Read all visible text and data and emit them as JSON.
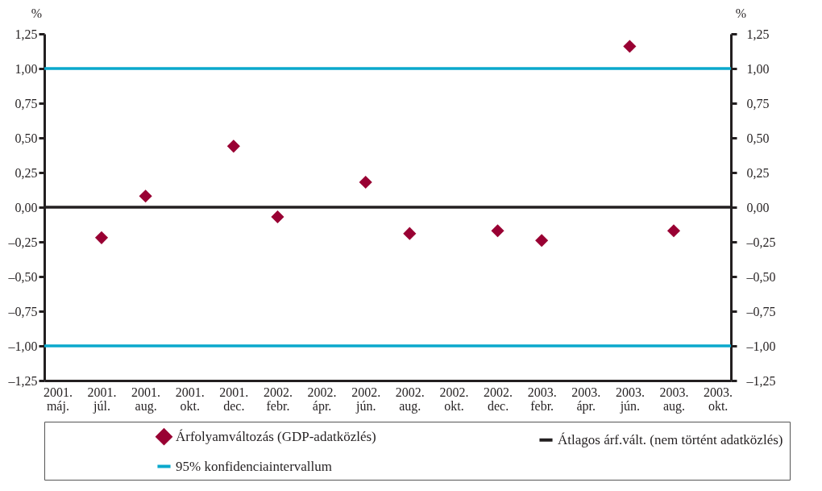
{
  "chart_data": {
    "type": "scatter",
    "ylabel": "%",
    "y2label": "%",
    "categories": [
      "2001. máj.",
      "2001. júl.",
      "2001. aug.",
      "2001. okt.",
      "2001. dec.",
      "2002. febr.",
      "2002. ápr.",
      "2002. jún.",
      "2002. aug.",
      "2002. okt.",
      "2002. dec.",
      "2003. febr.",
      "2003. ápr.",
      "2003. jún.",
      "2003. aug.",
      "2003. okt."
    ],
    "ylim": [
      -1.25,
      1.25
    ],
    "yticks": [
      {
        "value": -1.25,
        "label": "–1,25"
      },
      {
        "value": -1,
        "label": "–1,00"
      },
      {
        "value": -0.75,
        "label": "–0,75"
      },
      {
        "value": -0.5,
        "label": "–0,50"
      },
      {
        "value": -0.25,
        "label": "–0,25"
      },
      {
        "value": 0,
        "label": "0,00"
      },
      {
        "value": 0.25,
        "label": "0,25"
      },
      {
        "value": 0.5,
        "label": "0,50"
      },
      {
        "value": 0.75,
        "label": "0,75"
      },
      {
        "value": 1,
        "label": "1,00"
      },
      {
        "value": 1.25,
        "label": "1,25"
      }
    ],
    "y2lim": [
      -1.25,
      1.25
    ],
    "y2ticks": [
      {
        "value": -1.25,
        "label": "–1,25"
      },
      {
        "value": -1,
        "label": "–1,00"
      },
      {
        "value": -0.75,
        "label": "–0,75"
      },
      {
        "value": -0.5,
        "label": "–0,50"
      },
      {
        "value": -0.25,
        "label": "–0,25"
      },
      {
        "value": 0,
        "label": "0,00"
      },
      {
        "value": 0.25,
        "label": "0,25"
      },
      {
        "value": 0.5,
        "label": "0,50"
      },
      {
        "value": 0.75,
        "label": "0,75"
      },
      {
        "value": 1,
        "label": "1,00"
      },
      {
        "value": 1.25,
        "label": "1,25"
      }
    ],
    "series": [
      {
        "name": "Árfolyamváltozás (GDP-adatközlés)",
        "color": "#990033",
        "values": [
          null,
          -0.22,
          0.08,
          null,
          0.44,
          -0.07,
          null,
          0.18,
          -0.19,
          null,
          -0.17,
          -0.24,
          null,
          1.16,
          -0.17,
          null
        ]
      }
    ],
    "ref_lines": [
      {
        "axis": "y",
        "value": 0,
        "label": "Átlagos árf.vált. (nem történt adatközlés)",
        "color": "#231f20"
      },
      {
        "axis": "y",
        "value": 1,
        "label": "95% konfidenciaintervallum",
        "color": "#0aa8cc"
      },
      {
        "axis": "y",
        "value": -1,
        "color": "#0aa8cc"
      }
    ],
    "marker": "diamond",
    "grid": false,
    "legend": "bottom"
  }
}
